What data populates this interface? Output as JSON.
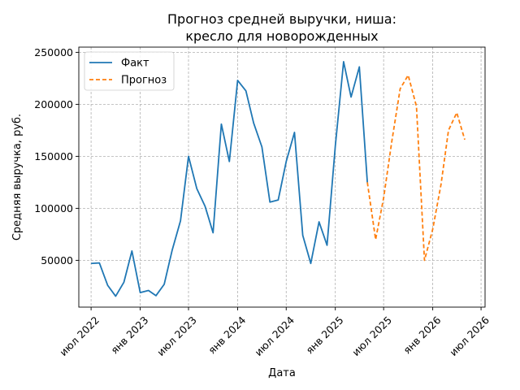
{
  "chart_data": {
    "type": "line",
    "title_line1": "Прогноз средней выручки, ниша:",
    "title_line2": "кресло для новорожденных",
    "xlabel": "Дата",
    "ylabel": "Средняя выручка, руб.",
    "ylim": [
      5000,
      255000
    ],
    "y_ticks": [
      50000,
      100000,
      150000,
      200000,
      250000
    ],
    "y_tick_labels": [
      "50000",
      "100000",
      "150000",
      "200000",
      "250000"
    ],
    "xlim": [
      "2022-05-16",
      "2026-07-16"
    ],
    "x_ticks": [
      "2022-07-01",
      "2023-01-01",
      "2023-07-01",
      "2024-01-01",
      "2024-07-01",
      "2025-01-01",
      "2025-07-01",
      "2026-01-01",
      "2026-07-01"
    ],
    "x_tick_labels": [
      "июл 2022",
      "янв 2023",
      "июл 2023",
      "янв 2024",
      "июл 2024",
      "янв 2025",
      "июл 2025",
      "янв 2026",
      "июл 2026"
    ],
    "grid": true,
    "legend_position": "top-left",
    "series": [
      {
        "name": "Факт",
        "color": "#1f77b4",
        "style": "solid",
        "points": [
          [
            "2022-07-01",
            47000
          ],
          [
            "2022-08-01",
            47500
          ],
          [
            "2022-09-01",
            26000
          ],
          [
            "2022-10-01",
            15500
          ],
          [
            "2022-11-01",
            29000
          ],
          [
            "2022-12-01",
            59000
          ],
          [
            "2023-01-01",
            19000
          ],
          [
            "2023-02-01",
            21000
          ],
          [
            "2023-03-01",
            16000
          ],
          [
            "2023-04-01",
            27000
          ],
          [
            "2023-05-01",
            60000
          ],
          [
            "2023-06-01",
            88000
          ],
          [
            "2023-07-01",
            150000
          ],
          [
            "2023-08-01",
            119000
          ],
          [
            "2023-09-01",
            102000
          ],
          [
            "2023-10-01",
            76500
          ],
          [
            "2023-11-01",
            181000
          ],
          [
            "2023-12-01",
            145000
          ],
          [
            "2024-01-01",
            223000
          ],
          [
            "2024-02-01",
            213000
          ],
          [
            "2024-03-01",
            182000
          ],
          [
            "2024-04-01",
            159000
          ],
          [
            "2024-05-01",
            106000
          ],
          [
            "2024-06-01",
            108000
          ],
          [
            "2024-07-01",
            145000
          ],
          [
            "2024-08-01",
            173000
          ],
          [
            "2024-09-01",
            74000
          ],
          [
            "2024-10-01",
            47000
          ],
          [
            "2024-11-01",
            87000
          ],
          [
            "2024-12-01",
            64500
          ],
          [
            "2025-01-01",
            160000
          ],
          [
            "2025-02-01",
            241000
          ],
          [
            "2025-03-01",
            207000
          ],
          [
            "2025-04-01",
            236000
          ],
          [
            "2025-05-01",
            125000
          ]
        ]
      },
      {
        "name": "Прогноз",
        "color": "#ff7f0e",
        "style": "dashed",
        "points": [
          [
            "2025-05-01",
            125000
          ],
          [
            "2025-06-01",
            70000
          ],
          [
            "2025-07-01",
            110000
          ],
          [
            "2025-08-01",
            165000
          ],
          [
            "2025-09-01",
            215000
          ],
          [
            "2025-10-01",
            228000
          ],
          [
            "2025-11-01",
            198000
          ],
          [
            "2025-12-01",
            50000
          ],
          [
            "2026-01-01",
            80000
          ],
          [
            "2026-02-01",
            123000
          ],
          [
            "2026-03-01",
            175000
          ],
          [
            "2026-04-01",
            192000
          ],
          [
            "2026-05-01",
            166000
          ]
        ]
      }
    ]
  }
}
